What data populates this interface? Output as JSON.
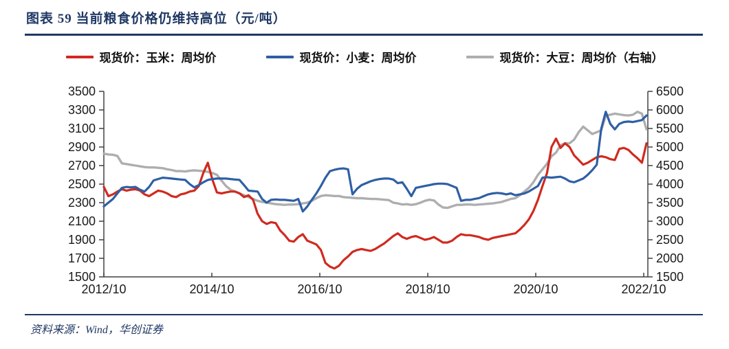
{
  "header": {
    "title": "图表 59  当前粮食价格仍维持高位（元/吨）"
  },
  "footer": {
    "source": "资料来源：Wind，华创证券"
  },
  "colors": {
    "navy": "#1f3864",
    "corn_red": "#d02a1f",
    "wheat_blue": "#2f5fa5",
    "soybean_gray": "#aeaeae",
    "axis": "#404040"
  },
  "chart_data": {
    "type": "line",
    "title": "当前粮食价格仍维持高位（元/吨）",
    "grid": false,
    "legend_position": "top",
    "x_unit": "monthly points from 2012/10 to 2022/10",
    "x_tick_labels": [
      "2012/10",
      "2014/10",
      "2016/10",
      "2018/10",
      "2020/10",
      "2022/10"
    ],
    "left_axis": {
      "min": 1500,
      "max": 3500,
      "step": 200,
      "ticks": [
        3500,
        3300,
        3100,
        2900,
        2700,
        2500,
        2300,
        2100,
        1900,
        1700,
        1500
      ]
    },
    "right_axis": {
      "min": 1500,
      "max": 6500,
      "step": 500,
      "ticks": [
        6500,
        6000,
        5500,
        5000,
        4500,
        4000,
        3500,
        3000,
        2500,
        2000,
        1500
      ]
    },
    "series": [
      {
        "name": "现货价：玉米：周均价",
        "color": "#d02a1f",
        "axis": "left",
        "width": 3.2,
        "values": [
          2470,
          2370,
          2390,
          2420,
          2445,
          2430,
          2440,
          2445,
          2430,
          2390,
          2370,
          2400,
          2430,
          2420,
          2400,
          2370,
          2360,
          2390,
          2400,
          2420,
          2430,
          2480,
          2620,
          2730,
          2550,
          2410,
          2400,
          2410,
          2420,
          2420,
          2400,
          2360,
          2380,
          2330,
          2180,
          2100,
          2070,
          2090,
          2080,
          2000,
          1950,
          1890,
          1880,
          1930,
          1960,
          1890,
          1870,
          1850,
          1790,
          1650,
          1610,
          1590,
          1620,
          1680,
          1720,
          1770,
          1790,
          1800,
          1790,
          1780,
          1800,
          1830,
          1860,
          1900,
          1940,
          1970,
          1930,
          1910,
          1930,
          1940,
          1920,
          1900,
          1910,
          1930,
          1900,
          1870,
          1870,
          1890,
          1930,
          1960,
          1950,
          1950,
          1940,
          1930,
          1910,
          1900,
          1920,
          1930,
          1940,
          1950,
          1960,
          1970,
          2010,
          2060,
          2120,
          2210,
          2330,
          2480,
          2620,
          2900,
          2990,
          2890,
          2940,
          2900,
          2810,
          2760,
          2710,
          2730,
          2760,
          2790,
          2800,
          2790,
          2770,
          2760,
          2880,
          2890,
          2870,
          2820,
          2780,
          2730,
          2940
        ]
      },
      {
        "name": "现货价：小麦：周均价",
        "color": "#2f5fa5",
        "axis": "left",
        "width": 3.2,
        "values": [
          2260,
          2300,
          2340,
          2400,
          2460,
          2470,
          2465,
          2470,
          2440,
          2420,
          2470,
          2540,
          2555,
          2570,
          2565,
          2560,
          2555,
          2550,
          2545,
          2500,
          2465,
          2490,
          2520,
          2545,
          2555,
          2560,
          2560,
          2560,
          2555,
          2550,
          2545,
          2490,
          2430,
          2425,
          2420,
          2340,
          2300,
          2330,
          2335,
          2330,
          2330,
          2325,
          2320,
          2340,
          2205,
          2260,
          2330,
          2400,
          2480,
          2570,
          2640,
          2655,
          2665,
          2670,
          2660,
          2390,
          2450,
          2490,
          2510,
          2530,
          2545,
          2555,
          2560,
          2560,
          2550,
          2510,
          2520,
          2450,
          2370,
          2460,
          2470,
          2480,
          2490,
          2500,
          2505,
          2505,
          2500,
          2480,
          2460,
          2320,
          2330,
          2330,
          2340,
          2350,
          2370,
          2390,
          2400,
          2405,
          2400,
          2390,
          2400,
          2380,
          2390,
          2400,
          2420,
          2450,
          2480,
          2570,
          2575,
          2570,
          2575,
          2580,
          2560,
          2530,
          2520,
          2540,
          2560,
          2600,
          2650,
          2710,
          3100,
          3280,
          3150,
          3090,
          3150,
          3170,
          3175,
          3170,
          3180,
          3190,
          3240
        ]
      },
      {
        "name": "现货价：大豆：周均价（右轴）",
        "color": "#aeaeae",
        "axis": "right",
        "width": 3.4,
        "values": [
          4820,
          4800,
          4790,
          4760,
          4560,
          4540,
          4520,
          4500,
          4480,
          4460,
          4450,
          4450,
          4440,
          4430,
          4400,
          4380,
          4350,
          4350,
          4340,
          4360,
          4370,
          4360,
          4350,
          4330,
          4300,
          4250,
          4100,
          3950,
          3850,
          3800,
          3750,
          3700,
          3650,
          3600,
          3550,
          3520,
          3500,
          3480,
          3460,
          3450,
          3440,
          3450,
          3450,
          3460,
          3480,
          3500,
          3550,
          3620,
          3680,
          3700,
          3690,
          3680,
          3680,
          3650,
          3640,
          3630,
          3620,
          3620,
          3610,
          3600,
          3600,
          3590,
          3580,
          3570,
          3500,
          3480,
          3450,
          3460,
          3440,
          3460,
          3500,
          3550,
          3580,
          3560,
          3450,
          3370,
          3360,
          3400,
          3440,
          3440,
          3450,
          3450,
          3440,
          3450,
          3460,
          3470,
          3480,
          3500,
          3520,
          3560,
          3600,
          3620,
          3700,
          3800,
          3900,
          4050,
          4250,
          4400,
          4550,
          4750,
          4850,
          5050,
          5100,
          5100,
          5200,
          5400,
          5550,
          5450,
          5350,
          5400,
          5450,
          5850,
          5870,
          5900,
          5880,
          5860,
          5850,
          5870,
          5950,
          5900,
          5480
        ]
      }
    ]
  }
}
